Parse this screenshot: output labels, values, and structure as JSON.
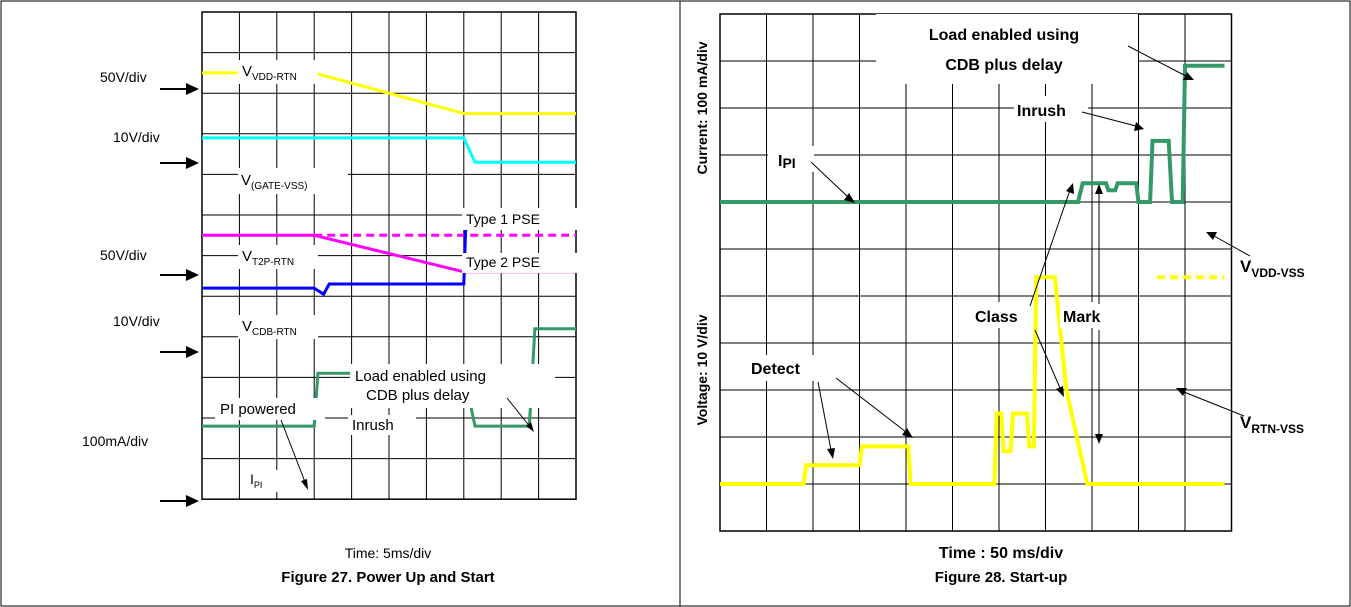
{
  "chart_data": [
    {
      "type": "line",
      "figure_caption": "Figure 27. Power Up and Start",
      "xlabel": "Time: 5ms/div",
      "grid": true,
      "annotations": {
        "scale_vdd": "50V/div",
        "scale_gate": "10V/div",
        "scale_t2p": "50V/div",
        "scale_cdb": "10V/div",
        "scale_ipi": "100mA/div",
        "pi_powered": "PI powered",
        "inrush": "Inrush",
        "load_line1": "Load enabled using",
        "load_line2": "CDB plus delay",
        "type1": "Type 1 PSE",
        "type2": "Type 2 PSE"
      },
      "series": [
        {
          "name": "V",
          "sub": "VDD-RTN",
          "color": "#ffff00",
          "dashed": false,
          "x": [
            0,
            3.0,
            7.0,
            10.0
          ],
          "y": [
            1.5,
            1.5,
            2.5,
            2.5
          ]
        },
        {
          "name": "V",
          "sub": "(GATE-VSS)",
          "color": "#00ffff",
          "dashed": false,
          "x": [
            0,
            7.0,
            7.3,
            10.0
          ],
          "y": [
            3.1,
            3.1,
            3.7,
            3.7
          ]
        },
        {
          "name": "V",
          "sub": "T2P-RTN",
          "color": "#ff00ff",
          "dashed": false,
          "x": [
            0,
            3.0,
            7.0,
            10.0
          ],
          "y": [
            5.5,
            5.5,
            6.4,
            6.4
          ]
        },
        {
          "name": "",
          "sub": "",
          "color": "#ff00ff",
          "dashed": true,
          "x": [
            3.0,
            10.0
          ],
          "y": [
            5.5,
            5.5
          ]
        },
        {
          "name": "V",
          "sub": "CDB-RTN",
          "color": "#0000ff",
          "dashed": false,
          "x": [
            0,
            3.0,
            3.25,
            3.4,
            7.0,
            7.05,
            10.0
          ],
          "y": [
            6.8,
            6.8,
            6.95,
            6.7,
            6.7,
            5.3,
            5.3
          ]
        },
        {
          "name": "I",
          "sub": "PI",
          "color": "#339966",
          "dashed": false,
          "x": [
            0,
            3.0,
            3.1,
            7.0,
            7.3,
            8.75,
            8.9,
            10.0
          ],
          "y": [
            10.2,
            10.2,
            8.9,
            8.9,
            10.2,
            10.2,
            7.8,
            7.8
          ]
        }
      ]
    },
    {
      "type": "line",
      "figure_caption": "Figure 28. Start-up",
      "xlabel": "Time : 50 ms/div",
      "ylabel_top": "Current: 100 mA/div",
      "ylabel_bottom": "Voltage: 10 V/div",
      "grid": true,
      "annotations": {
        "load_line1": "Load enabled using",
        "load_line2": "CDB plus delay",
        "inrush": "Inrush",
        "class": "Class",
        "mark": "Mark",
        "detect": "Detect",
        "vdd_vss": "VDD-VSS",
        "rtn_vss": "RTN-VSS"
      },
      "series": [
        {
          "name": "I",
          "sub": "PI",
          "color": "#339966",
          "dashed": false,
          "x": [
            0,
            7.7,
            7.8,
            8.3,
            8.35,
            8.5,
            8.55,
            8.95,
            9.0,
            9.25,
            9.3,
            9.65,
            9.72,
            9.95,
            10.0,
            10.85
          ],
          "y": [
            4,
            4,
            3.6,
            3.6,
            3.75,
            3.75,
            3.6,
            3.6,
            4,
            4,
            2.7,
            2.7,
            4,
            4,
            1.1,
            1.1
          ]
        },
        {
          "name": "V",
          "sub": "VDD-VSS",
          "color": "#ffff00",
          "dashed": true,
          "x": [
            9.4,
            10.85
          ],
          "y": [
            5.6,
            5.6
          ]
        },
        {
          "name": "V",
          "sub": "RTN-VSS",
          "color": "#ffff00",
          "dashed": false,
          "x": [
            0,
            1.8,
            1.85,
            3.0,
            3.05,
            4.05,
            4.1,
            5.9,
            5.95,
            6.05,
            6.1,
            6.25,
            6.3,
            6.6,
            6.65,
            6.75,
            6.8,
            7.0,
            7.05,
            7.2,
            7.45,
            7.9,
            10.85
          ],
          "y": [
            10,
            10,
            9.6,
            9.6,
            9.2,
            9.2,
            10,
            10,
            8.5,
            8.5,
            9.3,
            9.3,
            8.5,
            8.5,
            9.2,
            9.2,
            5.6,
            5.6,
            5.6,
            5.6,
            8.0,
            10,
            10
          ]
        }
      ]
    }
  ]
}
